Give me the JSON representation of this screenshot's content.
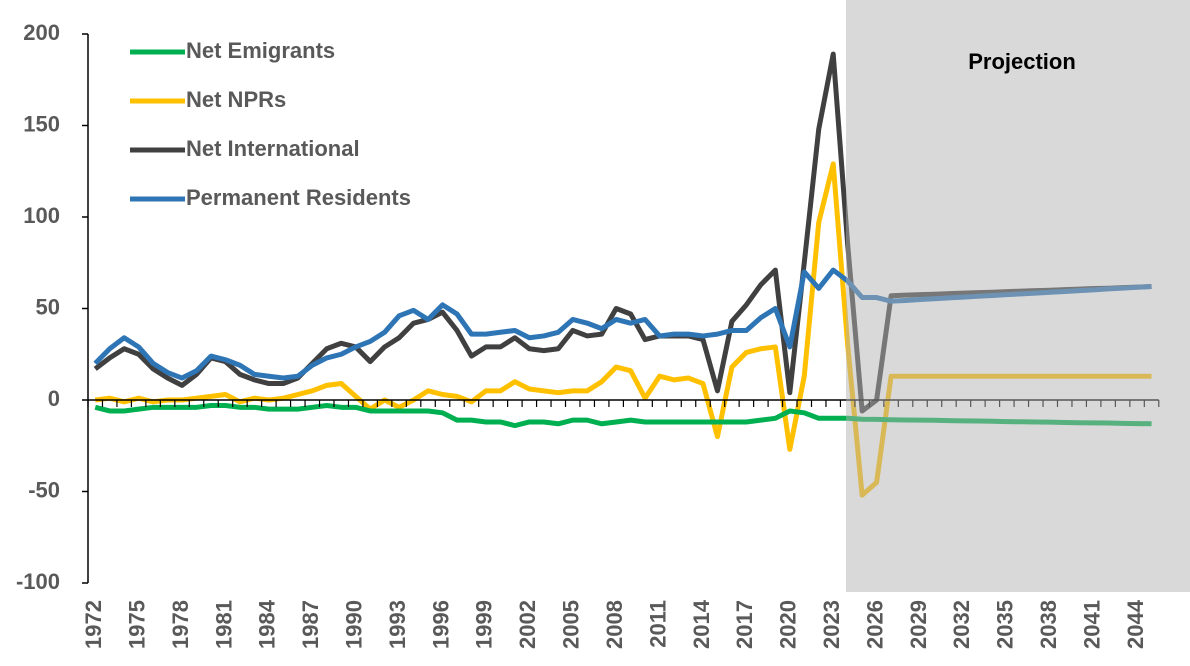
{
  "chart_data": {
    "type": "line",
    "annotation": "Projection",
    "categories": [
      "1972",
      null,
      null,
      "1975",
      null,
      null,
      "1978",
      null,
      null,
      "1981",
      null,
      null,
      "1984",
      null,
      null,
      "1987",
      null,
      null,
      "1990",
      null,
      null,
      "1993",
      null,
      null,
      "1996",
      null,
      null,
      "1999",
      null,
      null,
      "2002",
      null,
      null,
      "2005",
      null,
      null,
      "2008",
      null,
      null,
      "2011",
      null,
      null,
      "2014",
      null,
      null,
      "2017",
      null,
      null,
      "2020",
      null,
      null,
      "2023",
      null,
      null,
      "2026",
      null,
      null,
      "2029",
      null,
      null,
      "2032",
      null,
      null,
      "2035",
      null,
      null,
      "2038",
      null,
      null,
      "2041",
      null,
      null,
      "2044",
      null
    ],
    "series": [
      {
        "name": "Net Emigrants",
        "color": "#00b050",
        "values": [
          -4,
          -6,
          -6,
          -5,
          -4,
          -4,
          -4,
          -4,
          -3,
          -3,
          -4,
          -4,
          -5,
          -5,
          -5,
          -4,
          -3,
          -4,
          -4,
          -6,
          -6,
          -6,
          -6,
          -6,
          -7,
          -11,
          -11,
          -12,
          -12,
          -14,
          -12,
          -12,
          -13,
          -11,
          -11,
          -13,
          -12,
          -11,
          -12,
          -12,
          -12,
          -12,
          -12,
          -12,
          -12,
          -12,
          -11,
          -10,
          -6,
          -7,
          -10,
          -10,
          -10,
          -10.5,
          -10.6,
          -10.8,
          -10.9,
          -11,
          -11.1,
          -11.3,
          -11.4,
          -11.5,
          -11.6,
          -11.8,
          -11.9,
          -12,
          -12.1,
          -12.3,
          -12.4,
          -12.5,
          -12.6,
          -12.8,
          -12.9,
          -13
        ]
      },
      {
        "name": "Net NPRs",
        "color": "#ffc000",
        "values": [
          0,
          1,
          -1,
          1,
          -1,
          0,
          0,
          1,
          2,
          3,
          -1,
          1,
          0,
          1,
          3,
          5,
          8,
          9,
          2,
          -5,
          0,
          -4,
          0,
          5,
          3,
          2,
          -1,
          5,
          5,
          10,
          6,
          5,
          4,
          5,
          5,
          10,
          18,
          16,
          1,
          13,
          11,
          12,
          9,
          -20,
          18,
          26,
          28,
          29,
          -27,
          13,
          97,
          129,
          30,
          -52,
          -45,
          13,
          13,
          13,
          13,
          13,
          13,
          13,
          13,
          13,
          13,
          13,
          13,
          13,
          13,
          13,
          13,
          13,
          13,
          13
        ]
      },
      {
        "name": "Net International",
        "color": "#404040",
        "values": [
          17,
          23,
          28,
          25,
          17,
          12,
          8,
          14,
          23,
          21,
          14,
          11,
          9,
          9,
          12,
          20,
          28,
          31,
          29,
          21,
          29,
          34,
          42,
          44,
          48,
          38,
          24,
          29,
          29,
          34,
          28,
          27,
          28,
          38,
          35,
          36,
          50,
          47,
          33,
          35,
          35,
          35,
          33,
          5,
          43,
          52,
          63,
          71,
          4,
          75,
          148,
          189,
          85,
          -6,
          0,
          57,
          57.3,
          57.6,
          57.8,
          58.1,
          58.4,
          58.7,
          58.9,
          59.2,
          59.5,
          59.8,
          60,
          60.3,
          60.6,
          60.9,
          61.1,
          61.4,
          61.7,
          62
        ]
      },
      {
        "name": "Permanent Residents",
        "color": "#2e75b6",
        "values": [
          20,
          28,
          34,
          29,
          20,
          15,
          12,
          16,
          24,
          22,
          19,
          14,
          13,
          12,
          13,
          19,
          23,
          25,
          29,
          32,
          37,
          46,
          49,
          44,
          52,
          47,
          36,
          36,
          37,
          38,
          34,
          35,
          37,
          44,
          42,
          39,
          44,
          42,
          44,
          35,
          36,
          36,
          35,
          36,
          38,
          38,
          45,
          50,
          29,
          70,
          61,
          71,
          65,
          56,
          56,
          54,
          54.4,
          54.9,
          55.3,
          55.8,
          56.2,
          56.7,
          57.1,
          57.6,
          58,
          58.4,
          58.9,
          59.3,
          59.8,
          60.2,
          60.7,
          61.1,
          61.6,
          62
        ]
      }
    ],
    "ylim": [
      -100,
      200
    ],
    "yticks": [
      -100,
      -50,
      0,
      50,
      100,
      150,
      200
    ],
    "legend": "upper left"
  }
}
